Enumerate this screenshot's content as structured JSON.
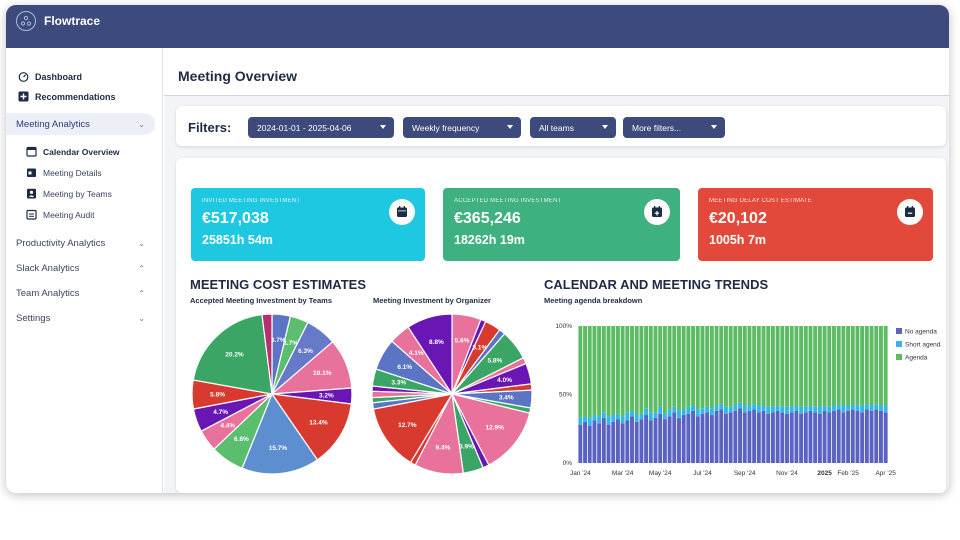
{
  "app": {
    "name": "Flowtrace"
  },
  "sidebar": {
    "top_links": [
      {
        "label": "Dashboard",
        "icon": "gauge-icon"
      },
      {
        "label": "Recommendations",
        "icon": "plus-square-icon"
      }
    ],
    "sections": [
      {
        "label": "Meeting Analytics",
        "active": true
      },
      {
        "label": "Productivity Analytics"
      },
      {
        "label": "Slack Analytics"
      },
      {
        "label": "Team Analytics"
      },
      {
        "label": "Settings"
      }
    ],
    "sub_links": [
      {
        "label": "Calendar Overview",
        "active": true
      },
      {
        "label": "Meeting Details"
      },
      {
        "label": "Meeting by Teams"
      },
      {
        "label": "Meeting Audit"
      }
    ]
  },
  "page": {
    "title": "Meeting Overview"
  },
  "filters": {
    "label": "Filters:",
    "date_range": "2024-01-01 - 2025-04-06",
    "frequency": "Weekly frequency",
    "teams": "All teams",
    "more": "More filters..."
  },
  "cards": [
    {
      "label": "INVITED MEETING INVESTMENT",
      "value": "€517,038",
      "hours": "25851h 54m",
      "color": "#1ec8e1",
      "icon": "calendar-icon"
    },
    {
      "label": "ACCEPTED MEETING INVESTMENT",
      "value": "€365,246",
      "hours": "18262h 19m",
      "color": "#3fb07f",
      "icon": "calendar-plus-icon"
    },
    {
      "label": "MEETING DELAY COST ESTIMATE",
      "value": "€20,102",
      "hours": "1005h 7m",
      "color": "#e2493a",
      "icon": "calendar-minus-icon"
    }
  ],
  "cost_section": {
    "title": "MEETING COST ESTIMATES"
  },
  "trends_section": {
    "title": "CALENDAR AND MEETING TRENDS"
  },
  "chart_data": [
    {
      "type": "pie",
      "title": "Accepted Meeting Investment by Teams",
      "slices": [
        {
          "value": 3.7,
          "label": "3.7%",
          "color": "#5b74c3"
        },
        {
          "value": 3.7,
          "label": "3.7%",
          "color": "#5bbd6e"
        },
        {
          "value": 6.3,
          "label": "6.3%",
          "color": "#6779c9"
        },
        {
          "value": 10.1,
          "label": "10.1%",
          "color": "#e8729b"
        },
        {
          "value": 3.2,
          "label": "3.2%",
          "color": "#6a16b5"
        },
        {
          "value": 13.4,
          "label": "13.4%",
          "color": "#d83a2f"
        },
        {
          "value": 15.7,
          "label": "15.7%",
          "color": "#5d8ecf"
        },
        {
          "value": 6.8,
          "label": "6.8%",
          "color": "#5bbd6e"
        },
        {
          "value": 4.4,
          "label": "4.4%",
          "color": "#e8729b"
        },
        {
          "value": 4.7,
          "label": "4.7%",
          "color": "#6a16b5"
        },
        {
          "value": 5.8,
          "label": "5.8%",
          "color": "#d83a2f"
        },
        {
          "value": 20.2,
          "label": "20.2%",
          "color": "#3aa564"
        },
        {
          "value": 2.0,
          "label": "",
          "color": "#b52f70"
        }
      ]
    },
    {
      "type": "pie",
      "title": "Meeting Investment by Organizer",
      "slices": [
        {
          "value": 5.6,
          "label": "5.6%",
          "color": "#e8729b"
        },
        {
          "value": 1.0,
          "label": "",
          "color": "#6a16b5"
        },
        {
          "value": 3.1,
          "label": "3.1%",
          "color": "#d83a2f"
        },
        {
          "value": 1.2,
          "label": "",
          "color": "#5b74c3"
        },
        {
          "value": 5.8,
          "label": "5.8%",
          "color": "#3aa564"
        },
        {
          "value": 1.2,
          "label": "",
          "color": "#e8729b"
        },
        {
          "value": 4.0,
          "label": "4.0%",
          "color": "#6a16b5"
        },
        {
          "value": 1.2,
          "label": "",
          "color": "#d83a2f"
        },
        {
          "value": 3.4,
          "label": "3.4%",
          "color": "#5b74c3"
        },
        {
          "value": 1.0,
          "label": "",
          "color": "#3aa564"
        },
        {
          "value": 12.9,
          "label": "12.9%",
          "color": "#e8729b"
        },
        {
          "value": 1.2,
          "label": "",
          "color": "#6a16b5"
        },
        {
          "value": 3.9,
          "label": "3.9%",
          "color": "#3aa564"
        },
        {
          "value": 9.4,
          "label": "9.4%",
          "color": "#e8729b"
        },
        {
          "value": 1.0,
          "label": "",
          "color": "#d83a2f"
        },
        {
          "value": 12.7,
          "label": "12.7%",
          "color": "#d83a2f"
        },
        {
          "value": 1.2,
          "label": "",
          "color": "#5b74c3"
        },
        {
          "value": 1.0,
          "label": "",
          "color": "#3aa564"
        },
        {
          "value": 1.2,
          "label": "",
          "color": "#e8729b"
        },
        {
          "value": 1.0,
          "label": "",
          "color": "#6a16b5"
        },
        {
          "value": 3.3,
          "label": "3.3%",
          "color": "#3aa564"
        },
        {
          "value": 6.1,
          "label": "6.1%",
          "color": "#5b74c3"
        },
        {
          "value": 4.1,
          "label": "4.1%",
          "color": "#e8729b"
        },
        {
          "value": 8.8,
          "label": "8.8%",
          "color": "#6a16b5"
        }
      ]
    },
    {
      "type": "bar",
      "stacked": true,
      "title": "Meeting agenda breakdown",
      "ylim": [
        0,
        100
      ],
      "yticks": [
        "0%",
        "50%",
        "100%"
      ],
      "xticks": [
        {
          "label": "Jan '24",
          "pos": 0
        },
        {
          "label": "Mar '24",
          "pos": 9
        },
        {
          "label": "May '24",
          "pos": 17
        },
        {
          "label": "Jul '24",
          "pos": 26
        },
        {
          "label": "Sep '24",
          "pos": 35
        },
        {
          "label": "Nov '24",
          "pos": 44
        },
        {
          "label": "2025",
          "pos": 52,
          "bold": true
        },
        {
          "label": "Feb '25",
          "pos": 57
        },
        {
          "label": "Apr '25",
          "pos": 65
        }
      ],
      "legend_position": "right",
      "series": [
        {
          "name": "No agenda",
          "color": "#5a62c2",
          "values": [
            28,
            30,
            27,
            31,
            29,
            33,
            28,
            30,
            32,
            29,
            31,
            34,
            30,
            32,
            35,
            31,
            33,
            36,
            32,
            34,
            37,
            33,
            35,
            36,
            38,
            34,
            36,
            37,
            35,
            38,
            39,
            36,
            37,
            38,
            40,
            37,
            38,
            39,
            37,
            38,
            36,
            37,
            38,
            37,
            36,
            37,
            38,
            36,
            37,
            38,
            37,
            36,
            38,
            37,
            38,
            39,
            37,
            38,
            39,
            38,
            37,
            39,
            38,
            39,
            38,
            37
          ]
        },
        {
          "name": "Short agenda",
          "color": "#35b6e8",
          "values": [
            5,
            4,
            6,
            4,
            5,
            4,
            6,
            5,
            4,
            5,
            6,
            4,
            5,
            4,
            5,
            6,
            4,
            5,
            4,
            5,
            4,
            5,
            4,
            5,
            4,
            5,
            4,
            4,
            5,
            4,
            4,
            5,
            4,
            4,
            4,
            5,
            4,
            4,
            5,
            4,
            5,
            4,
            4,
            4,
            5,
            4,
            4,
            5,
            4,
            4,
            4,
            5,
            4,
            4,
            4,
            4,
            5,
            4,
            4,
            4,
            5,
            4,
            4,
            4,
            4,
            5
          ]
        },
        {
          "name": "Agenda",
          "color": "#5dbb63",
          "values": [
            67,
            66,
            67,
            65,
            66,
            63,
            66,
            65,
            64,
            66,
            63,
            62,
            65,
            64,
            60,
            63,
            63,
            59,
            64,
            61,
            59,
            62,
            61,
            59,
            58,
            61,
            60,
            59,
            60,
            58,
            57,
            59,
            59,
            58,
            56,
            58,
            58,
            57,
            58,
            58,
            59,
            59,
            58,
            59,
            59,
            59,
            58,
            59,
            59,
            58,
            59,
            59,
            58,
            59,
            58,
            57,
            58,
            58,
            57,
            58,
            58,
            57,
            58,
            57,
            58,
            58
          ]
        }
      ]
    }
  ]
}
